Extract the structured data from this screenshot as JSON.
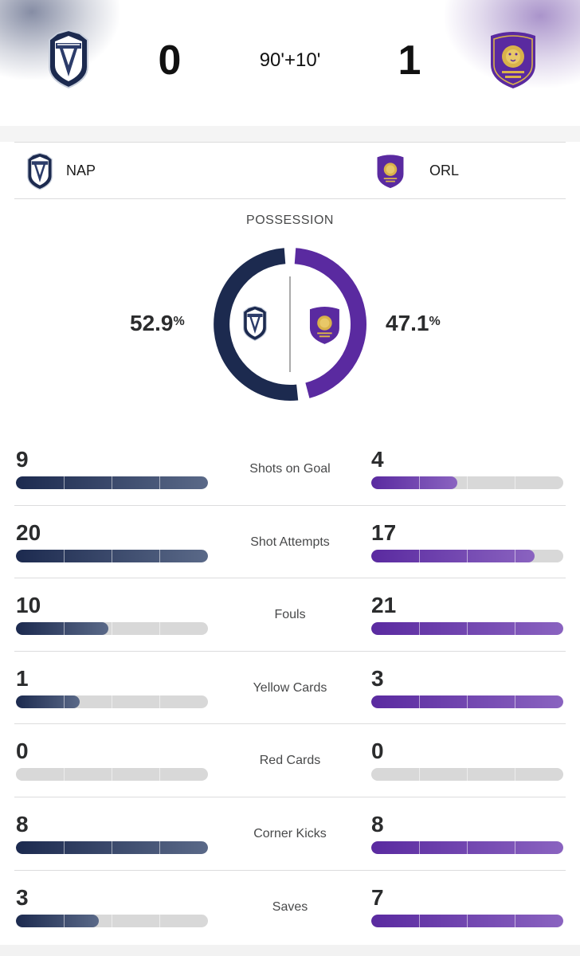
{
  "match": {
    "home": {
      "abbr": "NAP",
      "score": "0",
      "crest": "naples-crest",
      "color": "#1c2a4f"
    },
    "away": {
      "abbr": "ORL",
      "score": "1",
      "crest": "orlando-city-lion-crest",
      "color": "#5a2aa0"
    },
    "clock": "90'+10'"
  },
  "possession": {
    "title": "POSSESSION",
    "home_value": "52.9",
    "away_value": "47.1",
    "unit": "%",
    "home_fraction": 0.529,
    "away_fraction": 0.471
  },
  "stats": [
    {
      "label": "Shots on Goal",
      "home": "9",
      "away": "4",
      "home_fill": 1.0,
      "away_fill": 0.45
    },
    {
      "label": "Shot Attempts",
      "home": "20",
      "away": "17",
      "home_fill": 1.0,
      "away_fill": 0.85
    },
    {
      "label": "Fouls",
      "home": "10",
      "away": "21",
      "home_fill": 0.48,
      "away_fill": 1.0
    },
    {
      "label": "Yellow Cards",
      "home": "1",
      "away": "3",
      "home_fill": 0.33,
      "away_fill": 1.0
    },
    {
      "label": "Red Cards",
      "home": "0",
      "away": "0",
      "home_fill": 0.0,
      "away_fill": 0.0
    },
    {
      "label": "Corner Kicks",
      "home": "8",
      "away": "8",
      "home_fill": 1.0,
      "away_fill": 1.0
    },
    {
      "label": "Saves",
      "home": "3",
      "away": "7",
      "home_fill": 0.43,
      "away_fill": 1.0
    }
  ]
}
